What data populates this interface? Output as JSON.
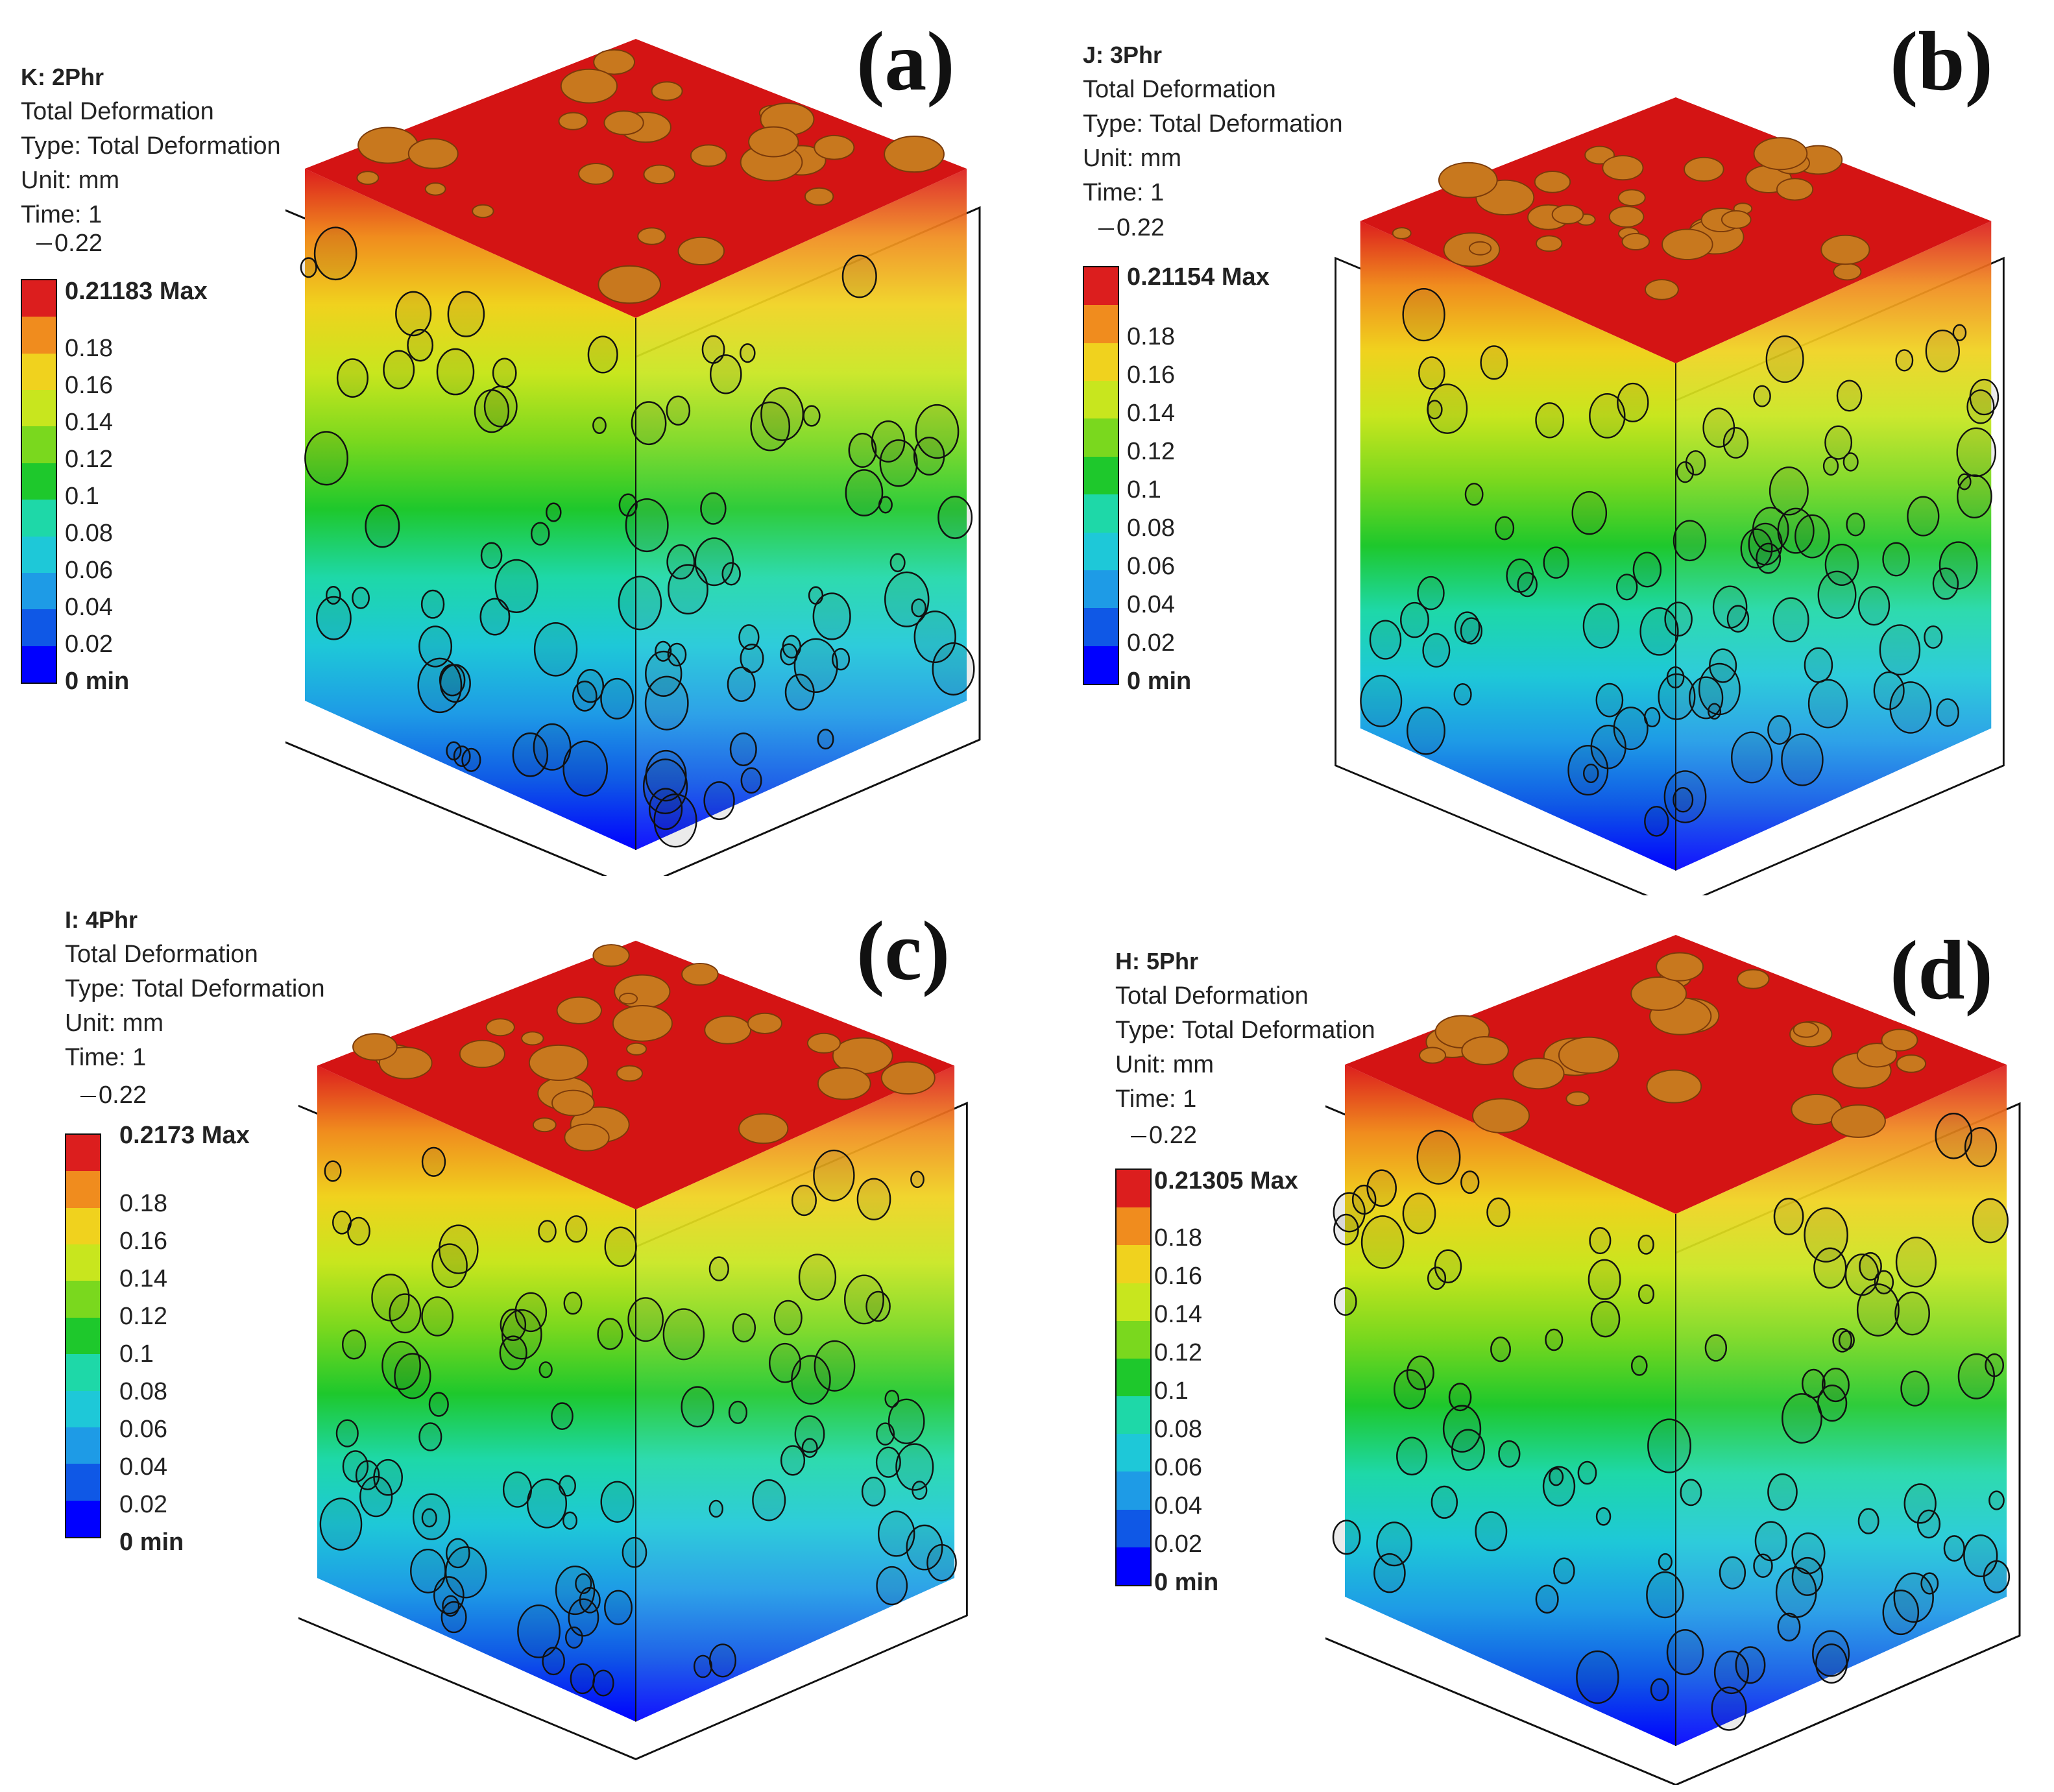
{
  "colors": {
    "scale": [
      "#0000ff",
      "#0f58e6",
      "#1e9be6",
      "#1ec8d8",
      "#1ed8a8",
      "#1ec82c",
      "#7ad81e",
      "#c8e61e",
      "#f0d21e",
      "#f08c1e",
      "#dc1e1e"
    ],
    "red_top": "#d41414",
    "outline": "#111111"
  },
  "shared_scale": {
    "top": "0.22",
    "ticks": [
      "0.18",
      "0.16",
      "0.14",
      "0.12",
      "0.1",
      "0.08",
      "0.06",
      "0.04",
      "0.02"
    ],
    "min": "0 min"
  },
  "panels": [
    {
      "letter": "(a)",
      "name": "K: 2Phr",
      "type_line": "Total Deformation",
      "type_full": "Type: Total Deformation",
      "unit": "Unit: mm",
      "time": "Time: 1",
      "max": "0.21183 Max"
    },
    {
      "letter": "(b)",
      "name": "J: 3Phr",
      "type_line": "Total Deformation",
      "type_full": "Type: Total Deformation",
      "unit": "Unit: mm",
      "time": "Time: 1",
      "max": "0.21154 Max"
    },
    {
      "letter": "(c)",
      "name": "I: 4Phr",
      "type_line": "Total Deformation",
      "type_full": "Type: Total Deformation",
      "unit": "Unit: mm",
      "time": "Time: 1",
      "max": "0.2173 Max"
    },
    {
      "letter": "(d)",
      "name": "H: 5Phr",
      "type_line": "Total Deformation",
      "type_full": "Type: Total Deformation",
      "unit": "Unit: mm",
      "time": "Time: 1",
      "max": "0.21305 Max"
    }
  ]
}
